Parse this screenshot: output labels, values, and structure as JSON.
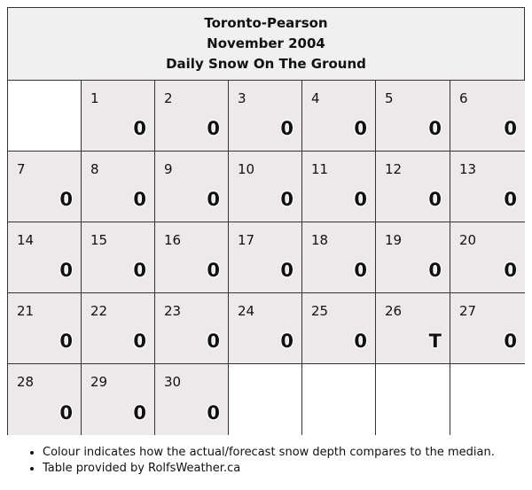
{
  "header": {
    "station": "Toronto-Pearson",
    "month": "November 2004",
    "subtitle": "Daily Snow On The Ground"
  },
  "calendar": {
    "first_weekday_index": 1,
    "days": [
      {
        "day": "1",
        "value": "0"
      },
      {
        "day": "2",
        "value": "0"
      },
      {
        "day": "3",
        "value": "0"
      },
      {
        "day": "4",
        "value": "0"
      },
      {
        "day": "5",
        "value": "0"
      },
      {
        "day": "6",
        "value": "0"
      },
      {
        "day": "7",
        "value": "0"
      },
      {
        "day": "8",
        "value": "0"
      },
      {
        "day": "9",
        "value": "0"
      },
      {
        "day": "10",
        "value": "0"
      },
      {
        "day": "11",
        "value": "0"
      },
      {
        "day": "12",
        "value": "0"
      },
      {
        "day": "13",
        "value": "0"
      },
      {
        "day": "14",
        "value": "0"
      },
      {
        "day": "15",
        "value": "0"
      },
      {
        "day": "16",
        "value": "0"
      },
      {
        "day": "17",
        "value": "0"
      },
      {
        "day": "18",
        "value": "0"
      },
      {
        "day": "19",
        "value": "0"
      },
      {
        "day": "20",
        "value": "0"
      },
      {
        "day": "21",
        "value": "0"
      },
      {
        "day": "22",
        "value": "0"
      },
      {
        "day": "23",
        "value": "0"
      },
      {
        "day": "24",
        "value": "0"
      },
      {
        "day": "25",
        "value": "0"
      },
      {
        "day": "26",
        "value": "T"
      },
      {
        "day": "27",
        "value": "0"
      },
      {
        "day": "28",
        "value": "0"
      },
      {
        "day": "29",
        "value": "0"
      },
      {
        "day": "30",
        "value": "0"
      }
    ],
    "cell_color": "#ede8e9",
    "empty_color": "#ffffff",
    "header_color": "#f0f0f0"
  },
  "notes": [
    "Colour indicates how the actual/forecast snow depth compares to the median.",
    "Table provided by RolfsWeather.ca"
  ]
}
